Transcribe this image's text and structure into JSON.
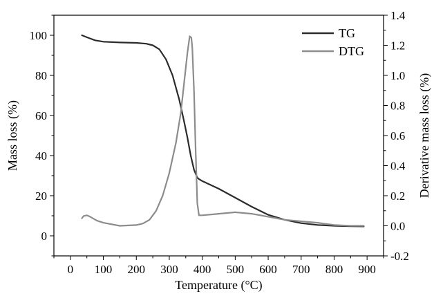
{
  "chart_data": {
    "type": "line",
    "title": "",
    "xlabel": "Temperature (°C)",
    "ylabel": "Mass loss (%)",
    "y2label": "Derivative mass loss (%)",
    "xlim": [
      -50,
      950
    ],
    "ylim": [
      -10,
      110
    ],
    "y2lim": [
      -0.2,
      1.4
    ],
    "xticks": [
      0,
      100,
      200,
      300,
      400,
      500,
      600,
      700,
      800,
      900
    ],
    "yticks": [
      0,
      20,
      40,
      60,
      80,
      100
    ],
    "y2ticks": [
      -0.2,
      0.0,
      0.2,
      0.4,
      0.6,
      0.8,
      1.0,
      1.2,
      1.4
    ],
    "y2tick_labels": [
      "-0.2",
      "0.0",
      "0.2",
      "0.4",
      "0.6",
      "0.8",
      "1.0",
      "1.2",
      "1.4"
    ],
    "legend_position": "top-right",
    "grid": false,
    "series": [
      {
        "name": "TG",
        "axis": "left",
        "color": "#2b2b2b",
        "x": [
          35,
          50,
          75,
          100,
          150,
          200,
          230,
          250,
          270,
          290,
          310,
          330,
          345,
          355,
          365,
          375,
          385,
          390,
          400,
          450,
          500,
          550,
          600,
          650,
          700,
          750,
          800,
          850,
          890
        ],
        "y": [
          100,
          99,
          97.5,
          96.8,
          96.4,
          96.2,
          95.8,
          95.0,
          93,
          88,
          80,
          68,
          57,
          49,
          40,
          33,
          29,
          28.3,
          27.3,
          23.5,
          19,
          14.5,
          10.5,
          8.0,
          6.3,
          5.4,
          5.0,
          4.8,
          4.7
        ]
      },
      {
        "name": "DTG",
        "axis": "right",
        "color": "#8c8c8c",
        "x": [
          35,
          40,
          50,
          60,
          80,
          100,
          150,
          200,
          220,
          240,
          260,
          280,
          300,
          320,
          335,
          345,
          355,
          362,
          367,
          370,
          375,
          380,
          385,
          390,
          395,
          400,
          450,
          500,
          550,
          600,
          650,
          700,
          750,
          800,
          850,
          890
        ],
        "y": [
          0.05,
          0.065,
          0.07,
          0.06,
          0.035,
          0.02,
          0.0,
          0.005,
          0.015,
          0.04,
          0.1,
          0.2,
          0.35,
          0.55,
          0.75,
          0.95,
          1.15,
          1.26,
          1.25,
          1.18,
          0.9,
          0.5,
          0.15,
          0.07,
          0.07,
          0.07,
          0.08,
          0.09,
          0.08,
          0.06,
          0.04,
          0.03,
          0.02,
          0.005,
          0.0,
          0.0
        ]
      }
    ]
  }
}
